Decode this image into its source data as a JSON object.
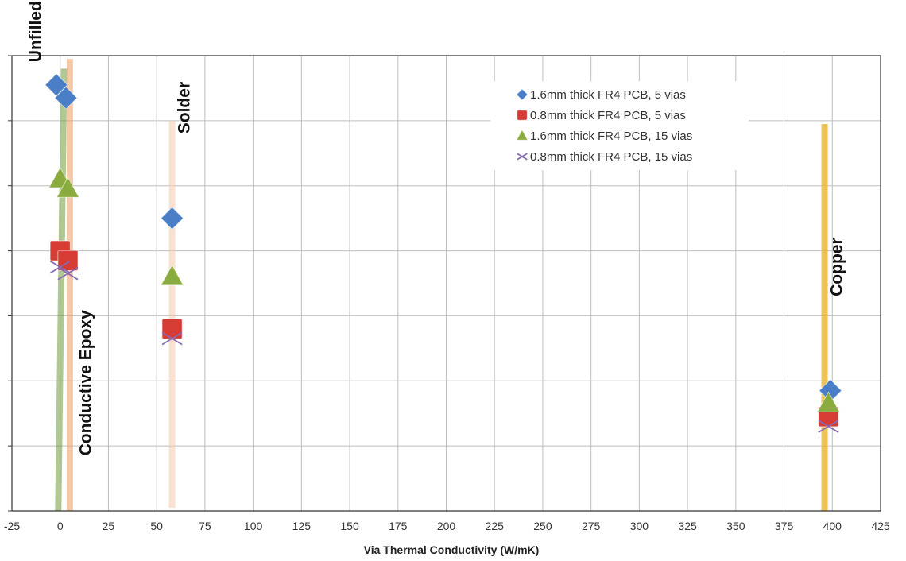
{
  "chart_data": {
    "type": "scatter",
    "title": "",
    "xlabel": "Via Thermal Conductivity (W/mK)",
    "ylabel": "",
    "xlim": [
      -25,
      425
    ],
    "ylim": [
      0,
      7
    ],
    "x_ticks": [
      "-25",
      "0",
      "25",
      "50",
      "75",
      "100",
      "125",
      "150",
      "175",
      "200",
      "225",
      "250",
      "275",
      "300",
      "325",
      "350",
      "375",
      "400",
      "425"
    ],
    "y_tick_labels_visible": false,
    "grid": true,
    "legend_position": "top-right",
    "series": [
      {
        "name": "1.6mm thick FR4 PCB, 5 vias",
        "marker": "diamond",
        "color": "#4a7fc8",
        "points": [
          [
            -2,
            6.55
          ],
          [
            3,
            6.35
          ],
          [
            58,
            4.5
          ],
          [
            399,
            1.85
          ]
        ]
      },
      {
        "name": "0.8mm thick FR4 PCB, 5 vias",
        "marker": "square",
        "color": "#d63b34",
        "points": [
          [
            0,
            4.0
          ],
          [
            4,
            3.85
          ],
          [
            58,
            2.8
          ],
          [
            398,
            1.45
          ]
        ]
      },
      {
        "name": "1.6mm thick FR4 PCB, 15 vias",
        "marker": "triangle",
        "color": "#8aac3e",
        "points": [
          [
            0,
            5.1
          ],
          [
            4,
            4.95
          ],
          [
            58,
            3.6
          ],
          [
            398,
            1.65
          ]
        ]
      },
      {
        "name": "0.8mm thick FR4 PCB, 15 vias",
        "marker": "x",
        "color": "#8a6ab0",
        "points": [
          [
            0,
            3.75
          ],
          [
            4,
            3.65
          ],
          [
            58,
            2.65
          ],
          [
            398,
            1.3
          ]
        ]
      }
    ],
    "bands": [
      {
        "name": "unfilled",
        "color": "#6f9a3a",
        "opacity": 0.55,
        "x_top": 2,
        "x_bottom": -1,
        "y_top": 6.8,
        "y_bottom": 0
      },
      {
        "name": "conductive-epoxy",
        "color": "#f2a46e",
        "opacity": 0.6,
        "x_top": 5,
        "x_bottom": 5,
        "y_top": 6.95,
        "y_bottom": 0
      },
      {
        "name": "solder",
        "color": "#f8cfb0",
        "opacity": 0.6,
        "x_top": 58,
        "x_bottom": 58,
        "y_top": 6.0,
        "y_bottom": 0.05
      },
      {
        "name": "copper",
        "color": "#eab93a",
        "opacity": 0.85,
        "x_top": 396,
        "x_bottom": 396,
        "y_top": 5.95,
        "y_bottom": 0
      }
    ],
    "annotations": [
      {
        "text": "Unfilled",
        "x": -10,
        "y": 6.9,
        "rotation": -90
      },
      {
        "text": "Solder",
        "x": 67,
        "y": 5.8,
        "rotation": -90
      },
      {
        "text": "Conductive Epoxy",
        "x": 16,
        "y": 0.85,
        "rotation": -90
      },
      {
        "text": "Copper",
        "x": 405,
        "y": 3.3,
        "rotation": -90
      }
    ]
  }
}
